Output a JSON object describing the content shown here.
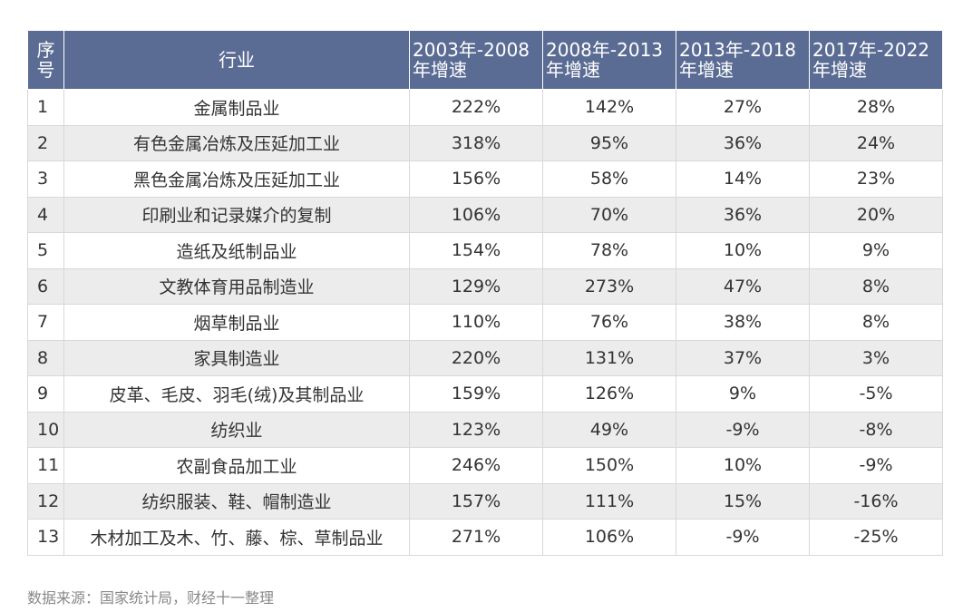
{
  "table": {
    "header": [
      "序号",
      "行业",
      "2003年-2008年增速",
      "2008年-2013年增速",
      "2013年-2018年增速",
      "2017年-2022年增速"
    ],
    "rows": [
      [
        "1",
        "金属制品业",
        "222%",
        "142%",
        "27%",
        "28%"
      ],
      [
        "2",
        "有色金属冶炼及压延加工业",
        "318%",
        "95%",
        "36%",
        "24%"
      ],
      [
        "3",
        "黑色金属冶炼及压延加工业",
        "156%",
        "58%",
        "14%",
        "23%"
      ],
      [
        "4",
        "印刷业和记录媒介的复制",
        "106%",
        "70%",
        "36%",
        "20%"
      ],
      [
        "5",
        "造纸及纸制品业",
        "154%",
        "78%",
        "10%",
        "9%"
      ],
      [
        "6",
        "文教体育用品制造业",
        "129%",
        "273%",
        "47%",
        "8%"
      ],
      [
        "7",
        "烟草制品业",
        "110%",
        "76%",
        "38%",
        "8%"
      ],
      [
        "8",
        "家具制造业",
        "220%",
        "131%",
        "37%",
        "3%"
      ],
      [
        "9",
        "皮革、毛皮、羽毛(绒)及其制品业",
        "159%",
        "126%",
        "9%",
        "-5%"
      ],
      [
        "10",
        "纺织业",
        "123%",
        "49%",
        "-9%",
        "-8%"
      ],
      [
        "11",
        "农副食品加工业",
        "246%",
        "150%",
        "10%",
        "-9%"
      ],
      [
        "12",
        "纺织服装、鞋、帽制造业",
        "157%",
        "111%",
        "15%",
        "-16%"
      ],
      [
        "13",
        "木材加工及木、竹、藤、棕、草制品业",
        "271%",
        "106%",
        "-9%",
        "-25%"
      ]
    ]
  },
  "source": "数据来源：国家统计局，财经十一整理"
}
